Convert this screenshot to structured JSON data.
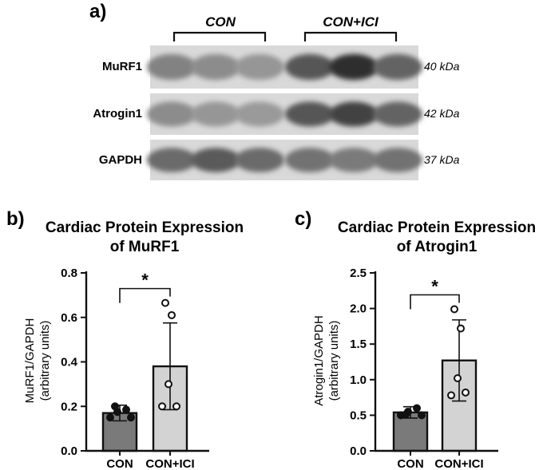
{
  "panel_a": {
    "label": "a)",
    "group_labels": [
      "CON",
      "CON+ICI"
    ],
    "rows": [
      {
        "name": "MuRF1",
        "kda": "40 kDa",
        "intensities": [
          0.4,
          0.35,
          0.3,
          0.62,
          0.82,
          0.55
        ]
      },
      {
        "name": "Atrogin1",
        "kda": "42 kDa",
        "intensities": [
          0.35,
          0.3,
          0.28,
          0.62,
          0.72,
          0.55
        ]
      },
      {
        "name": "GAPDH",
        "kda": "37 kDa",
        "intensities": [
          0.52,
          0.6,
          0.52,
          0.48,
          0.44,
          0.48
        ]
      }
    ]
  },
  "panel_b": {
    "label": "b)"
  },
  "panel_c": {
    "label": "c)"
  },
  "chart_data": [
    {
      "type": "bar",
      "title": [
        "Cardiac Protein Expression",
        "of MuRF1"
      ],
      "ylabel": [
        "MuRF1/GAPDH",
        "(arbitrary units)"
      ],
      "categories": [
        "CON",
        "CON+ICI"
      ],
      "values": [
        0.17,
        0.38
      ],
      "errors": [
        0.035,
        0.195
      ],
      "points": [
        [
          0.15,
          0.175,
          0.185,
          0.15,
          0.2
        ],
        [
          0.2,
          0.2,
          0.3,
          0.61,
          0.665
        ]
      ],
      "ylim": [
        0,
        0.8
      ],
      "yticks": [
        "0.0",
        "0.2",
        "0.4",
        "0.6",
        "0.8"
      ],
      "significance": "*",
      "colors": {
        "CON": "#7a7a7a",
        "CON+ICI": "#d3d3d3"
      }
    },
    {
      "type": "bar",
      "title": [
        "Cardiac Protein Expression",
        "of Atrogin1"
      ],
      "ylabel": [
        "Atrogin1/GAPDH",
        "(arbitrary units)"
      ],
      "categories": [
        "CON",
        "CON+ICI"
      ],
      "values": [
        0.54,
        1.27
      ],
      "errors": [
        0.08,
        0.57
      ],
      "points": [
        [
          0.5,
          0.55,
          0.6,
          0.5,
          0.51
        ],
        [
          0.78,
          0.82,
          1.02,
          1.72,
          1.99
        ]
      ],
      "ylim": [
        0,
        2.5
      ],
      "yticks": [
        "0.0",
        "0.5",
        "1.0",
        "1.5",
        "2.0",
        "2.5"
      ],
      "significance": "*",
      "colors": {
        "CON": "#7a7a7a",
        "CON+ICI": "#d3d3d3"
      }
    }
  ]
}
